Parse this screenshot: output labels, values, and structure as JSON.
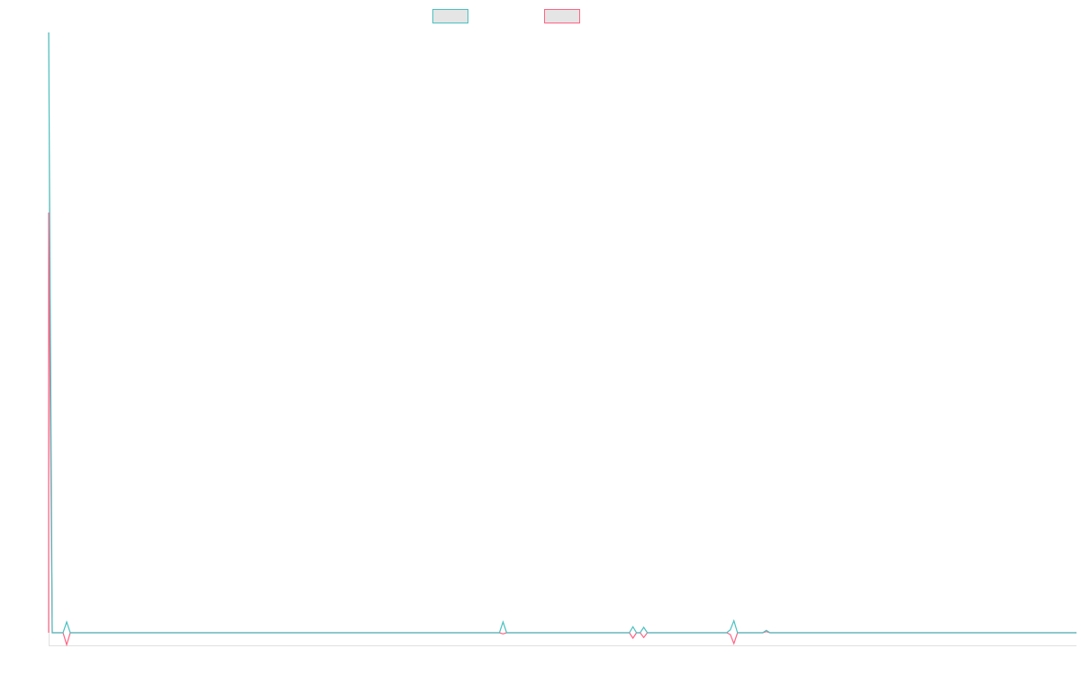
{
  "chart_data": {
    "type": "line",
    "title": "",
    "xlabel": "",
    "ylabel": "",
    "xlim": [
      0,
      285
    ],
    "ylim": [
      -2.1,
      100
    ],
    "grid": false,
    "legend": "top-center",
    "series": [
      {
        "color": "#4bc0c0",
        "points": [
          [
            0,
            100
          ],
          [
            1,
            0
          ],
          [
            4,
            0
          ],
          [
            5,
            1.8
          ],
          [
            6,
            0
          ],
          [
            125,
            0
          ],
          [
            126,
            1.8
          ],
          [
            127,
            0
          ],
          [
            161,
            0
          ],
          [
            162,
            1
          ],
          [
            163,
            0
          ],
          [
            164,
            0
          ],
          [
            165,
            0.9
          ],
          [
            166,
            0
          ],
          [
            188,
            0
          ],
          [
            189,
            0.5
          ],
          [
            190,
            2
          ],
          [
            191,
            0
          ],
          [
            198,
            0
          ],
          [
            199,
            0.4
          ],
          [
            200,
            0
          ],
          [
            285,
            0
          ]
        ]
      },
      {
        "color": "#ff6384",
        "points": [
          [
            0,
            0
          ],
          [
            0,
            70
          ],
          [
            1,
            0
          ],
          [
            4,
            0
          ],
          [
            5,
            -2
          ],
          [
            6,
            0
          ],
          [
            125,
            0
          ],
          [
            126,
            -0.2
          ],
          [
            127,
            0
          ],
          [
            161,
            0
          ],
          [
            162,
            -0.9
          ],
          [
            163,
            0
          ],
          [
            164,
            0
          ],
          [
            165,
            -0.8
          ],
          [
            166,
            0
          ],
          [
            188,
            0
          ],
          [
            189,
            -0.3
          ],
          [
            190,
            -1.8
          ],
          [
            191,
            0
          ],
          [
            198,
            0
          ],
          [
            199,
            0.2
          ],
          [
            200,
            0
          ],
          [
            285,
            0
          ]
        ]
      }
    ]
  }
}
